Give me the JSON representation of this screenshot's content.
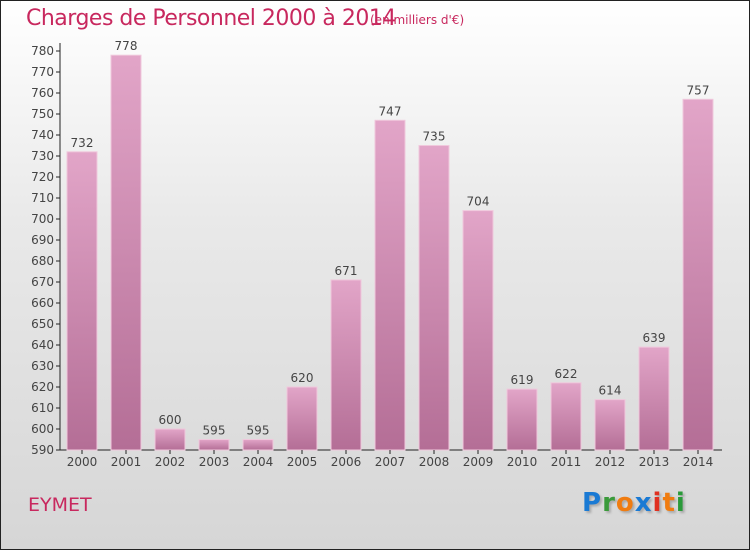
{
  "title": "Charges de Personnel 2000 à 2014",
  "unit": "(en milliers d'€)",
  "town": "EYMET",
  "logo": "Proxiti",
  "colors": {
    "bar_top": "#e2a5c8",
    "bar_bottom": "#b46e96",
    "title": "#c8285e"
  },
  "chart_data": {
    "type": "bar",
    "title": "Charges de Personnel 2000 à 2014",
    "ylabel": "(en milliers d'€)",
    "categories": [
      "2000",
      "2001",
      "2002",
      "2003",
      "2004",
      "2005",
      "2006",
      "2007",
      "2008",
      "2009",
      "2010",
      "2011",
      "2012",
      "2013",
      "2014"
    ],
    "values": [
      732,
      778,
      600,
      595,
      595,
      620,
      671,
      747,
      735,
      704,
      619,
      622,
      614,
      639,
      757
    ],
    "ylim": [
      590,
      780
    ],
    "yticks": [
      590,
      600,
      610,
      620,
      630,
      640,
      650,
      660,
      670,
      680,
      690,
      700,
      710,
      720,
      730,
      740,
      750,
      760,
      770,
      780
    ],
    "grid": false
  }
}
